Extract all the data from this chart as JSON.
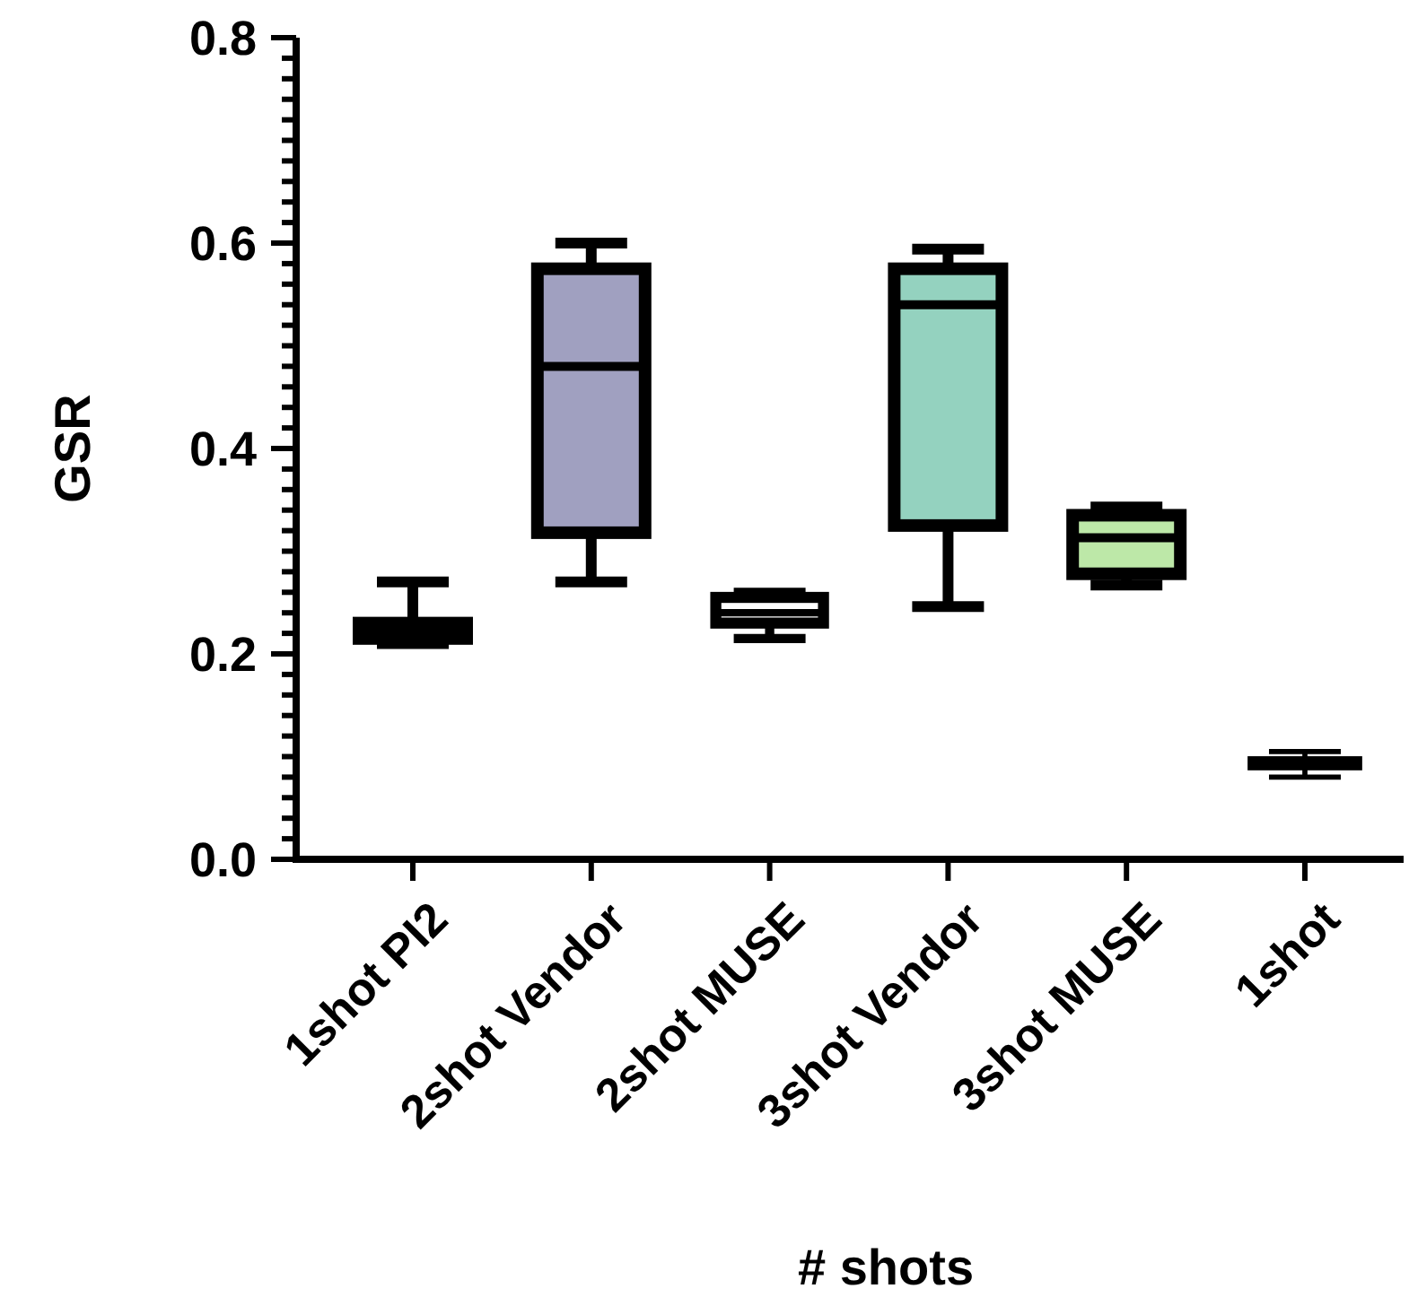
{
  "chart_data": {
    "type": "box",
    "xlabel": "# shots",
    "ylabel": "GSR",
    "categories": [
      "1shot PI2",
      "2shot Vendor",
      "2shot MUSE",
      "3shot Vendor",
      "3shot MUSE",
      "1shot"
    ],
    "colors": [
      "#ffffff",
      "#a0a0c0",
      "#ffffff",
      "#94d2bf",
      "#bde8a8",
      "#ffffff"
    ],
    "boxes": [
      {
        "low": 0.21,
        "q1": 0.215,
        "median": 0.22,
        "q3": 0.23,
        "high": 0.27
      },
      {
        "low": 0.27,
        "q1": 0.318,
        "median": 0.48,
        "q3": 0.575,
        "high": 0.6
      },
      {
        "low": 0.215,
        "q1": 0.23,
        "median": 0.24,
        "q3": 0.255,
        "high": 0.26
      },
      {
        "low": 0.246,
        "q1": 0.325,
        "median": 0.54,
        "q3": 0.575,
        "high": 0.594
      },
      {
        "low": 0.267,
        "q1": 0.278,
        "median": 0.313,
        "q3": 0.335,
        "high": 0.343
      },
      {
        "low": 0.08,
        "q1": 0.09,
        "median": 0.093,
        "q3": 0.097,
        "high": 0.105
      }
    ],
    "ylim": [
      0,
      0.8
    ],
    "yticks": [
      {
        "value": 0,
        "label": "0.0"
      },
      {
        "value": 0.02,
        "label": null
      },
      {
        "value": 0.04,
        "label": null
      },
      {
        "value": 0.06,
        "label": null
      },
      {
        "value": 0.08,
        "label": null
      },
      {
        "value": 0.1,
        "label": null
      },
      {
        "value": 0.12,
        "label": null
      },
      {
        "value": 0.14,
        "label": null
      },
      {
        "value": 0.16,
        "label": null
      },
      {
        "value": 0.18,
        "label": null
      },
      {
        "value": 0.2,
        "label": "0.2"
      },
      {
        "value": 0.22,
        "label": null
      },
      {
        "value": 0.24,
        "label": null
      },
      {
        "value": 0.26,
        "label": null
      },
      {
        "value": 0.28,
        "label": null
      },
      {
        "value": 0.3,
        "label": null
      },
      {
        "value": 0.32,
        "label": null
      },
      {
        "value": 0.34,
        "label": null
      },
      {
        "value": 0.36,
        "label": null
      },
      {
        "value": 0.38,
        "label": null
      },
      {
        "value": 0.4,
        "label": "0.4"
      },
      {
        "value": 0.42,
        "label": null
      },
      {
        "value": 0.44,
        "label": null
      },
      {
        "value": 0.46,
        "label": null
      },
      {
        "value": 0.48,
        "label": null
      },
      {
        "value": 0.5,
        "label": null
      },
      {
        "value": 0.52,
        "label": null
      },
      {
        "value": 0.54,
        "label": null
      },
      {
        "value": 0.56,
        "label": null
      },
      {
        "value": 0.58,
        "label": null
      },
      {
        "value": 0.6,
        "label": "0.6"
      },
      {
        "value": 0.62,
        "label": null
      },
      {
        "value": 0.64,
        "label": null
      },
      {
        "value": 0.66,
        "label": null
      },
      {
        "value": 0.68,
        "label": null
      },
      {
        "value": 0.7,
        "label": null
      },
      {
        "value": 0.72,
        "label": null
      },
      {
        "value": 0.74,
        "label": null
      },
      {
        "value": 0.76,
        "label": null
      },
      {
        "value": 0.78,
        "label": null
      },
      {
        "value": 0.8,
        "label": "0.8"
      }
    ]
  }
}
